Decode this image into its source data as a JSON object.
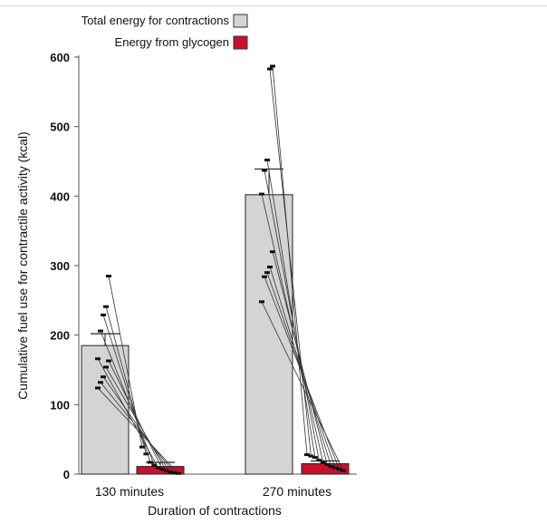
{
  "chart_data": {
    "type": "bar",
    "title": "",
    "xlabel": "Duration of contractions",
    "ylabel": "Cumulative  fuel use for contractile activity (kcal)",
    "ylim": [
      0,
      600
    ],
    "yticks": [
      0,
      100,
      200,
      300,
      400,
      500,
      600
    ],
    "categories": [
      "130 minutes",
      "270 minutes"
    ],
    "legend": {
      "placement": "top-left"
    },
    "series": [
      {
        "name": "Total energy for contractions",
        "color": "#d4d4d4",
        "values": [
          185,
          402
        ],
        "error_upper": [
          202,
          439
        ]
      },
      {
        "name": "Energy from glycogen",
        "color": "#c8102e",
        "values": [
          11,
          15
        ],
        "error_upper": [
          17,
          19
        ]
      }
    ],
    "paired_points": [
      {
        "category": "130 minutes",
        "total": [
          285,
          241,
          229,
          206,
          166,
          163,
          154,
          140,
          132,
          124
        ],
        "glycogen": [
          39,
          29,
          17,
          13,
          9,
          7,
          5,
          3,
          2,
          1
        ]
      },
      {
        "category": "270 minutes",
        "total": [
          587,
          583,
          452,
          437,
          403,
          320,
          298,
          290,
          284,
          248
        ],
        "glycogen": [
          28,
          26,
          24,
          20,
          17,
          14,
          11,
          9,
          7,
          5
        ]
      }
    ]
  }
}
